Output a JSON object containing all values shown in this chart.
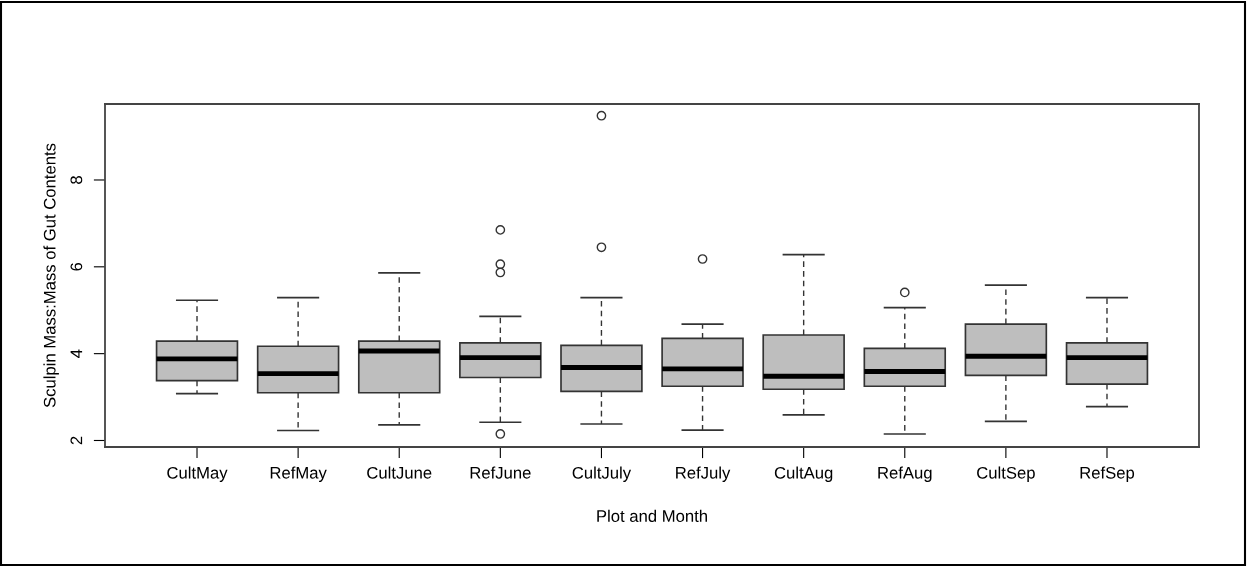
{
  "chart_data": {
    "type": "box",
    "xlabel": "Plot and Month",
    "ylabel": "Sculpin Mass:Mass of Gut Contents",
    "categories": [
      "CultMay",
      "RefMay",
      "CultJune",
      "RefJune",
      "CultJuly",
      "RefJuly",
      "CultAug",
      "RefAug",
      "CultSep",
      "RefSep"
    ],
    "color": "#bebebe",
    "boxes": [
      {
        "low": 3.08,
        "q1": 3.38,
        "median": 3.88,
        "q3": 4.29,
        "high": 5.23
      },
      {
        "low": 2.23,
        "q1": 3.1,
        "median": 3.54,
        "q3": 4.17,
        "high": 5.29
      },
      {
        "low": 2.36,
        "q1": 3.1,
        "median": 4.06,
        "q3": 4.29,
        "high": 5.86
      },
      {
        "low": 2.42,
        "q1": 3.45,
        "median": 3.91,
        "q3": 4.25,
        "high": 4.86,
        "outliers": [
          6.85,
          6.06,
          5.87,
          2.15
        ]
      },
      {
        "low": 2.38,
        "q1": 3.13,
        "median": 3.68,
        "q3": 4.19,
        "high": 5.29,
        "outliers": [
          9.48,
          6.45
        ]
      },
      {
        "low": 2.24,
        "q1": 3.25,
        "median": 3.65,
        "q3": 4.35,
        "high": 4.68,
        "outliers": [
          6.18
        ]
      },
      {
        "low": 2.59,
        "q1": 3.18,
        "median": 3.48,
        "q3": 4.43,
        "high": 6.28
      },
      {
        "low": 2.15,
        "q1": 3.25,
        "median": 3.59,
        "q3": 4.12,
        "high": 5.06,
        "outliers": [
          5.41
        ]
      },
      {
        "low": 2.44,
        "q1": 3.5,
        "median": 3.94,
        "q3": 4.68,
        "high": 5.58
      },
      {
        "low": 2.78,
        "q1": 3.3,
        "median": 3.91,
        "q3": 4.25,
        "high": 5.29
      }
    ],
    "ylim": [
      1.85,
      9.75
    ],
    "yticks": [
      2,
      4,
      6,
      8
    ],
    "grid": false,
    "legend": false
  }
}
